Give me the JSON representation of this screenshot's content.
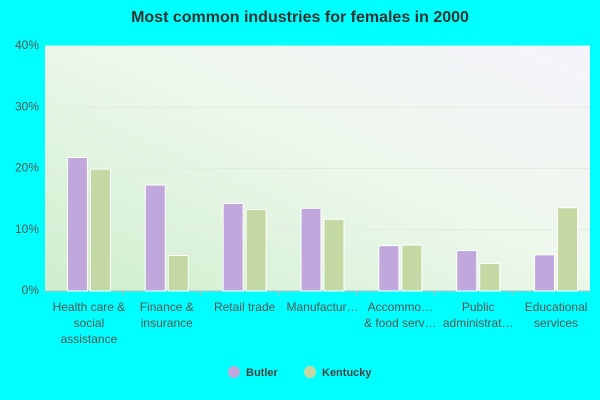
{
  "chart_data": {
    "type": "bar",
    "title": "Most common industries for females in 2000",
    "categories": [
      "Health care & social assistance",
      "Finance & insurance",
      "Retail trade",
      "Manufactur…",
      "Accommo… & food serv…",
      "Public administrat…",
      "Educational services"
    ],
    "series": [
      {
        "name": "Butler",
        "color": "#c0a8dc",
        "values": [
          21.8,
          17.3,
          14.3,
          13.5,
          7.4,
          6.6,
          5.9
        ]
      },
      {
        "name": "Kentucky",
        "color": "#c4d8a4",
        "values": [
          19.9,
          5.8,
          13.3,
          11.7,
          7.5,
          4.5,
          13.6
        ]
      }
    ],
    "ylim": [
      0,
      40
    ],
    "yticks": [
      {
        "value": 0,
        "label": "0%"
      },
      {
        "value": 10,
        "label": "10%"
      },
      {
        "value": 20,
        "label": "20%"
      },
      {
        "value": 30,
        "label": "30%"
      },
      {
        "value": 40,
        "label": "40%"
      }
    ],
    "grid": true,
    "legend": "bottom"
  }
}
